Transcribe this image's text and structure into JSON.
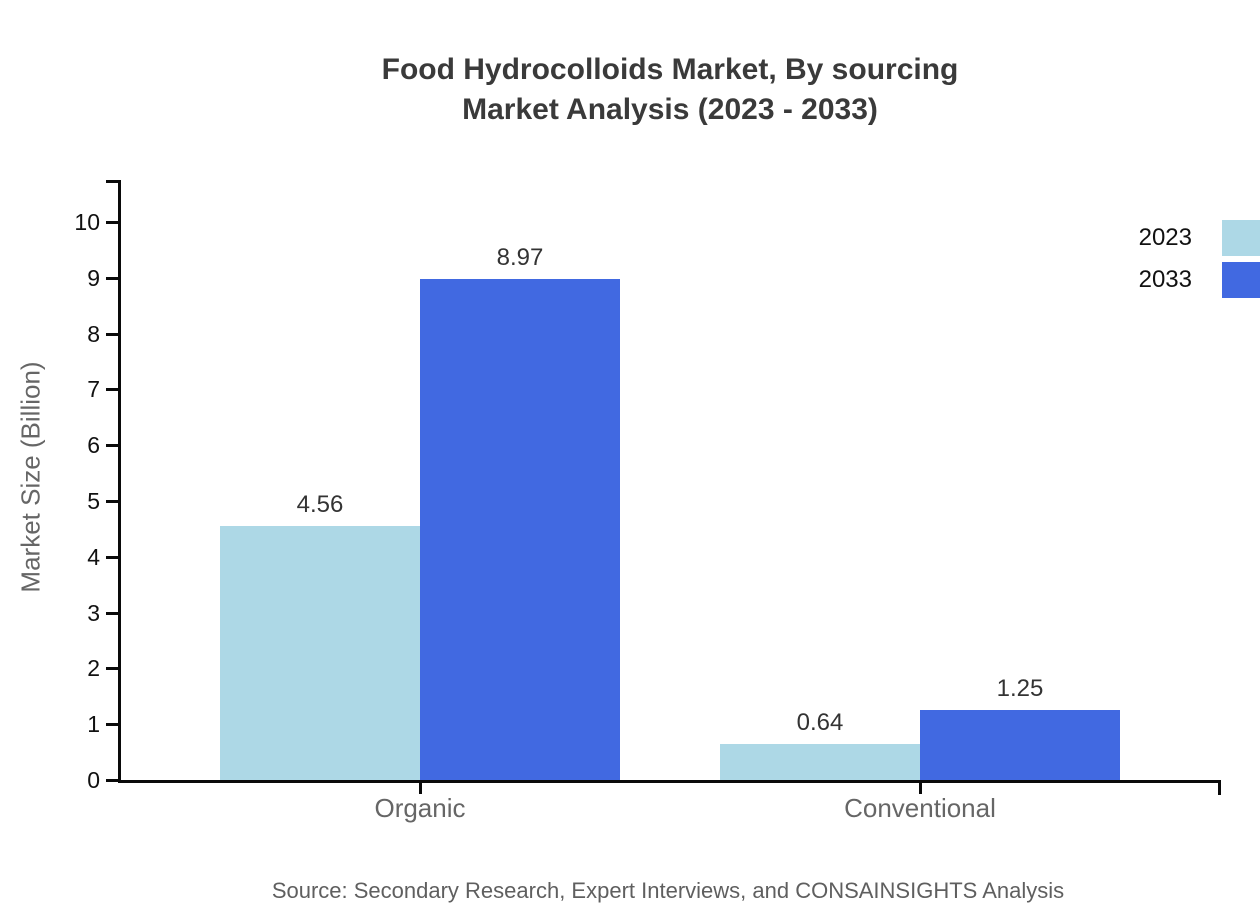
{
  "title": {
    "line1": "Food Hydrocolloids Market, By sourcing",
    "line2": "Market Analysis (2023 - 2033)"
  },
  "ylabel": "Market Size (Billion)",
  "source": "Source: Secondary Research, Expert Interviews, and CONSAINSIGHTS Analysis",
  "legend": {
    "position": "top-right",
    "items": [
      {
        "label": "2023",
        "color": "#ADD8E6"
      },
      {
        "label": "2033",
        "color": "#4169E1"
      }
    ]
  },
  "chart_data": {
    "type": "bar",
    "title": "Food Hydrocolloids Market, By sourcing Market Analysis (2023 - 2033)",
    "categories": [
      "Organic",
      "Conventional"
    ],
    "series": [
      {
        "name": "2023",
        "color": "#ADD8E6",
        "values": [
          4.56,
          0.64
        ]
      },
      {
        "name": "2033",
        "color": "#4169E1",
        "values": [
          8.97,
          1.25
        ]
      }
    ],
    "value_labels": [
      "4.56",
      "8.97",
      "0.64",
      "1.25"
    ],
    "xlabel": "",
    "ylabel": "Market Size (Billion)",
    "ylim": [
      0,
      10
    ],
    "yticks": [
      0,
      1,
      2,
      3,
      4,
      5,
      6,
      7,
      8,
      9,
      10
    ],
    "grid": false,
    "bar_value_labels_shown": true
  }
}
